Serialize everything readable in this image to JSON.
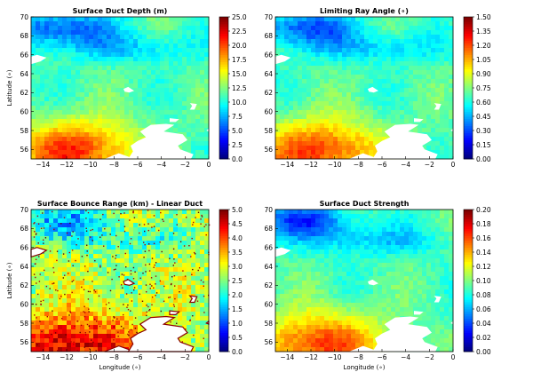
{
  "chart_data": [
    {
      "type": "heatmap",
      "title": "Surface Duct Depth (m)",
      "xlabel": "",
      "ylabel": "Latitude (∘)",
      "xlim": [
        -15,
        0
      ],
      "ylim": [
        55,
        70
      ],
      "xticks": [
        "−14",
        "−12",
        "−10",
        "−8",
        "−6",
        "−4",
        "−2",
        "0"
      ],
      "yticks": [
        "56",
        "58",
        "60",
        "62",
        "64",
        "66",
        "68",
        "70"
      ],
      "colorbar": {
        "range": [
          0,
          25
        ],
        "ticks": [
          "0.0",
          "2.5",
          "5.0",
          "7.5",
          "10.0",
          "12.5",
          "15.0",
          "17.5",
          "20.0",
          "22.5",
          "25.0"
        ]
      },
      "mean_level": 0.45,
      "colormap": "jet"
    },
    {
      "type": "heatmap",
      "title": "Limiting Ray Angle (∘)",
      "xlabel": "",
      "ylabel": "",
      "xlim": [
        -15,
        0
      ],
      "ylim": [
        55,
        70
      ],
      "xticks": [
        "−14",
        "−12",
        "−10",
        "−8",
        "−6",
        "−4",
        "−2",
        "0"
      ],
      "yticks": [
        "56",
        "58",
        "60",
        "62",
        "64",
        "66",
        "68",
        "70"
      ],
      "colorbar": {
        "range": [
          0,
          1.5
        ],
        "ticks": [
          "0.00",
          "0.15",
          "0.30",
          "0.45",
          "0.60",
          "0.75",
          "0.90",
          "1.05",
          "1.20",
          "1.35",
          "1.50"
        ]
      },
      "mean_level": 0.4,
      "colormap": "jet"
    },
    {
      "type": "heatmap",
      "title": "Surface Bounce Range (km) - Linear Duct",
      "xlabel": "Longitude (∘)",
      "ylabel": "Latitude (∘)",
      "xlim": [
        -15,
        0
      ],
      "ylim": [
        55,
        70
      ],
      "xticks": [
        "−14",
        "−12",
        "−10",
        "−8",
        "−6",
        "−4",
        "−2",
        "0"
      ],
      "yticks": [
        "56",
        "58",
        "60",
        "62",
        "64",
        "66",
        "68",
        "70"
      ],
      "colorbar": {
        "range": [
          0,
          5
        ],
        "ticks": [
          "0.0",
          "0.5",
          "1.0",
          "1.5",
          "2.0",
          "2.5",
          "3.0",
          "3.5",
          "4.0",
          "4.5",
          "5.0"
        ]
      },
      "mean_level": 0.6,
      "colormap": "jet"
    },
    {
      "type": "heatmap",
      "title": "Surface Duct Strength",
      "xlabel": "Longitude (∘)",
      "ylabel": "",
      "xlim": [
        -15,
        0
      ],
      "ylim": [
        55,
        70
      ],
      "xticks": [
        "−14",
        "−12",
        "−10",
        "−8",
        "−6",
        "−4",
        "−2",
        "0"
      ],
      "yticks": [
        "56",
        "58",
        "60",
        "62",
        "64",
        "66",
        "68",
        "70"
      ],
      "colorbar": {
        "range": [
          0,
          0.2
        ],
        "ticks": [
          "0.00",
          "0.02",
          "0.04",
          "0.06",
          "0.08",
          "0.10",
          "0.12",
          "0.14",
          "0.16",
          "0.18",
          "0.20"
        ]
      },
      "mean_level": 0.4,
      "colormap": "jet"
    }
  ]
}
